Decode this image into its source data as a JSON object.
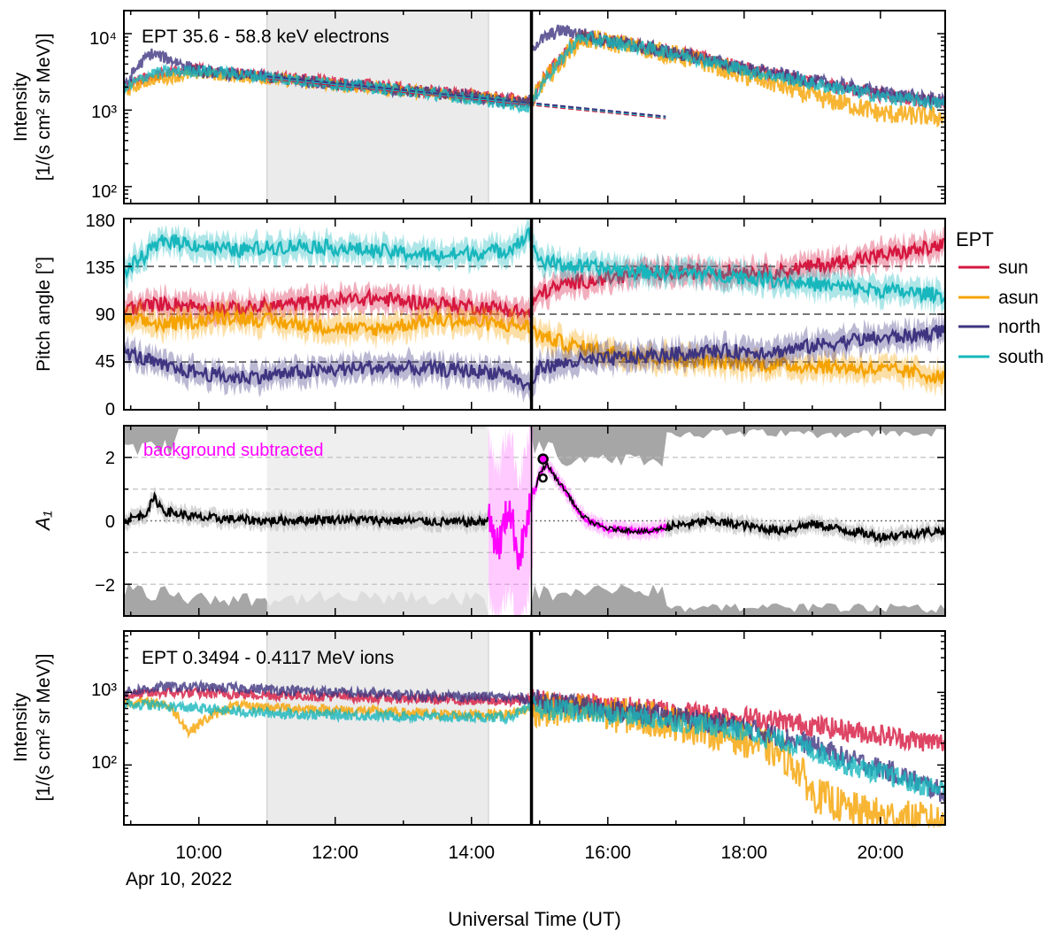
{
  "figure": {
    "x_axis_label": "Universal Time (UT)",
    "date_label": "Apr 10, 2022",
    "time_ticks": [
      "10:00",
      "12:00",
      "14:00",
      "16:00",
      "18:00",
      "20:00"
    ]
  },
  "legend": {
    "title": "EPT",
    "entries": [
      {
        "label": "sun",
        "color": "#d6173f"
      },
      {
        "label": "asun",
        "color": "#f5a300"
      },
      {
        "label": "north",
        "color": "#3d3580"
      },
      {
        "label": "south",
        "color": "#17b7bd"
      }
    ]
  },
  "chart_data": [
    {
      "type": "line",
      "panel": "electron_intensity",
      "title": "EPT 35.6 - 58.8 keV electrons",
      "ylabel_line1": "Intensity",
      "ylabel_line2": "[1/(s cm² sr MeV)]",
      "yscale": "log",
      "ylim": [
        60,
        20000
      ],
      "xlim_hours": [
        8.9,
        20.95
      ],
      "ytick_labels": [
        "10²",
        "10³",
        "10⁴"
      ],
      "background_interval_hours": [
        11.0,
        14.25
      ],
      "event_time_hours": 14.88,
      "series": [
        {
          "name": "sun",
          "x": [
            8.9,
            9.3,
            10.0,
            11.0,
            12.0,
            13.0,
            14.0,
            14.85,
            14.9,
            15.3,
            15.6,
            16.0,
            17.0,
            18.0,
            19.0,
            20.0,
            20.95
          ],
          "y": [
            1900,
            2800,
            3400,
            2800,
            2300,
            1900,
            1600,
            1300,
            1250,
            4500,
            9000,
            8000,
            5500,
            3500,
            2300,
            1600,
            1200
          ]
        },
        {
          "name": "asun",
          "x": [
            8.9,
            9.3,
            10.0,
            11.0,
            12.0,
            13.0,
            14.0,
            14.85,
            14.9,
            15.3,
            15.6,
            16.0,
            17.0,
            18.0,
            19.0,
            20.0,
            20.95
          ],
          "y": [
            1700,
            2500,
            3000,
            2600,
            2100,
            1800,
            1500,
            1250,
            1300,
            4000,
            8500,
            7800,
            5200,
            2800,
            1500,
            900,
            800
          ]
        },
        {
          "name": "north",
          "x": [
            8.9,
            9.3,
            10.0,
            11.0,
            12.0,
            13.0,
            14.0,
            14.85,
            14.9,
            15.3,
            15.6,
            16.0,
            17.0,
            18.0,
            19.0,
            20.0,
            20.95
          ],
          "y": [
            1800,
            5500,
            3200,
            2700,
            2200,
            1800,
            1500,
            1200,
            7000,
            11000,
            10000,
            8000,
            5500,
            3500,
            2400,
            1700,
            1300
          ]
        },
        {
          "name": "south",
          "x": [
            8.9,
            9.3,
            10.0,
            11.0,
            12.0,
            13.0,
            14.0,
            14.85,
            14.9,
            15.3,
            15.6,
            16.0,
            17.0,
            18.0,
            19.0,
            20.0,
            20.95
          ],
          "y": [
            1800,
            3000,
            3300,
            2700,
            2200,
            1800,
            1400,
            1100,
            1200,
            4200,
            8800,
            7800,
            5400,
            3300,
            2200,
            1500,
            1200
          ]
        }
      ],
      "background_fit": {
        "x": [
          11.0,
          16.85
        ],
        "y": [
          2600,
          780
        ]
      }
    },
    {
      "type": "line",
      "panel": "pitch_angle",
      "ylabel": "Pitch angle [°]",
      "ylim": [
        0,
        180
      ],
      "yticks": [
        0,
        45,
        90,
        135,
        180
      ],
      "reference_lines": [
        45,
        90,
        135
      ],
      "series": [
        {
          "name": "sun",
          "x": [
            8.9,
            9.5,
            10.5,
            11.5,
            12.5,
            13.5,
            14.5,
            14.85,
            15.0,
            15.5,
            16.5,
            17.5,
            18.5,
            19.5,
            20.5,
            20.95
          ],
          "y": [
            95,
            100,
            95,
            100,
            105,
            100,
            95,
            90,
            110,
            120,
            128,
            130,
            130,
            140,
            150,
            155
          ]
        },
        {
          "name": "asun",
          "x": [
            8.9,
            9.5,
            10.5,
            11.5,
            12.5,
            13.5,
            14.5,
            14.85,
            15.0,
            15.5,
            16.5,
            17.5,
            18.5,
            19.5,
            20.5,
            20.95
          ],
          "y": [
            85,
            80,
            88,
            80,
            75,
            85,
            80,
            78,
            70,
            60,
            50,
            45,
            42,
            40,
            35,
            30
          ]
        },
        {
          "name": "north",
          "x": [
            8.9,
            9.5,
            10.5,
            11.5,
            12.5,
            13.5,
            14.5,
            14.85,
            15.0,
            15.5,
            16.5,
            17.5,
            18.5,
            19.5,
            20.5,
            20.95
          ],
          "y": [
            55,
            40,
            30,
            35,
            40,
            38,
            35,
            20,
            40,
            45,
            50,
            55,
            55,
            65,
            70,
            75
          ]
        },
        {
          "name": "south",
          "x": [
            8.9,
            9.5,
            10.5,
            11.5,
            12.5,
            13.5,
            14.5,
            14.85,
            15.0,
            15.5,
            16.5,
            17.5,
            18.5,
            19.5,
            20.5,
            20.95
          ],
          "y": [
            130,
            160,
            150,
            155,
            150,
            145,
            150,
            165,
            140,
            135,
            130,
            128,
            122,
            115,
            110,
            108
          ]
        }
      ]
    },
    {
      "type": "line",
      "panel": "anisotropy",
      "ylabel": "A₁",
      "ylim": [
        -3,
        3
      ],
      "yticks": [
        -2,
        0,
        2
      ],
      "ytick_labels": [
        "−2",
        "0",
        "2"
      ],
      "annotation": "background subtracted",
      "annotation_color": "#ff00ff",
      "dashed_lines": [
        -2,
        -1,
        1,
        2
      ],
      "series": [
        {
          "name": "A1",
          "x": [
            8.9,
            9.2,
            9.35,
            9.5,
            10.0,
            11.0,
            12.0,
            13.0,
            14.0,
            14.25,
            16.85,
            17.5,
            18.5,
            19.0,
            19.5,
            20.0,
            20.5,
            20.95
          ],
          "y": [
            0.0,
            0.2,
            0.7,
            0.3,
            0.1,
            0.0,
            0.05,
            0.0,
            -0.05,
            0.0,
            -0.2,
            0.0,
            -0.3,
            -0.1,
            -0.3,
            -0.5,
            -0.4,
            -0.3
          ]
        },
        {
          "name": "A1 background subtracted",
          "x": [
            14.25,
            14.4,
            14.55,
            14.7,
            14.85,
            15.0,
            15.1,
            15.25,
            15.4,
            15.6,
            15.8,
            16.0,
            16.3,
            16.6,
            16.85
          ],
          "y": [
            0.0,
            -0.8,
            0.5,
            -1.2,
            0.3,
            1.5,
            1.8,
            1.3,
            0.9,
            0.2,
            -0.1,
            -0.25,
            -0.3,
            -0.35,
            -0.2
          ]
        }
      ],
      "markers": [
        {
          "x": 15.05,
          "y": 1.95
        },
        {
          "x": 15.05,
          "y": 1.35
        }
      ]
    },
    {
      "type": "line",
      "panel": "ion_intensity",
      "title": "EPT 0.3494 - 0.4117 MeV ions",
      "ylabel_line1": "Intensity",
      "ylabel_line2": "[1/(s cm² sr MeV)]",
      "yscale": "log",
      "ylim": [
        15,
        7000
      ],
      "ytick_labels": [
        "10²",
        "10³"
      ],
      "series": [
        {
          "name": "sun",
          "x": [
            8.9,
            9.5,
            10.5,
            11.5,
            12.5,
            13.5,
            14.5,
            14.9,
            15.5,
            16.5,
            17.5,
            18.5,
            19.5,
            20.5,
            20.95
          ],
          "y": [
            900,
            1000,
            950,
            900,
            850,
            800,
            750,
            800,
            700,
            600,
            500,
            400,
            300,
            220,
            200
          ]
        },
        {
          "name": "asun",
          "x": [
            8.9,
            9.5,
            9.85,
            10.5,
            11.5,
            12.5,
            13.5,
            14.5,
            14.9,
            15.5,
            16.5,
            17.5,
            18.5,
            19.0,
            19.5,
            20.0,
            20.5,
            20.95
          ],
          "y": [
            750,
            700,
            280,
            650,
            600,
            550,
            500,
            500,
            600,
            550,
            450,
            300,
            150,
            40,
            25,
            20,
            18,
            16
          ]
        },
        {
          "name": "north",
          "x": [
            8.9,
            9.5,
            10.5,
            11.5,
            12.5,
            13.5,
            14.5,
            14.9,
            15.5,
            16.5,
            17.5,
            18.5,
            19.5,
            20.5,
            20.95
          ],
          "y": [
            1000,
            1200,
            1150,
            1050,
            950,
            900,
            850,
            800,
            650,
            500,
            400,
            250,
            120,
            60,
            40
          ]
        },
        {
          "name": "south",
          "x": [
            8.9,
            9.5,
            10.5,
            11.5,
            12.5,
            13.5,
            14.5,
            14.9,
            15.5,
            16.5,
            17.5,
            18.5,
            19.5,
            20.5,
            20.95
          ],
          "y": [
            700,
            650,
            550,
            500,
            480,
            460,
            450,
            600,
            550,
            450,
            350,
            220,
            100,
            55,
            45
          ]
        }
      ]
    }
  ]
}
